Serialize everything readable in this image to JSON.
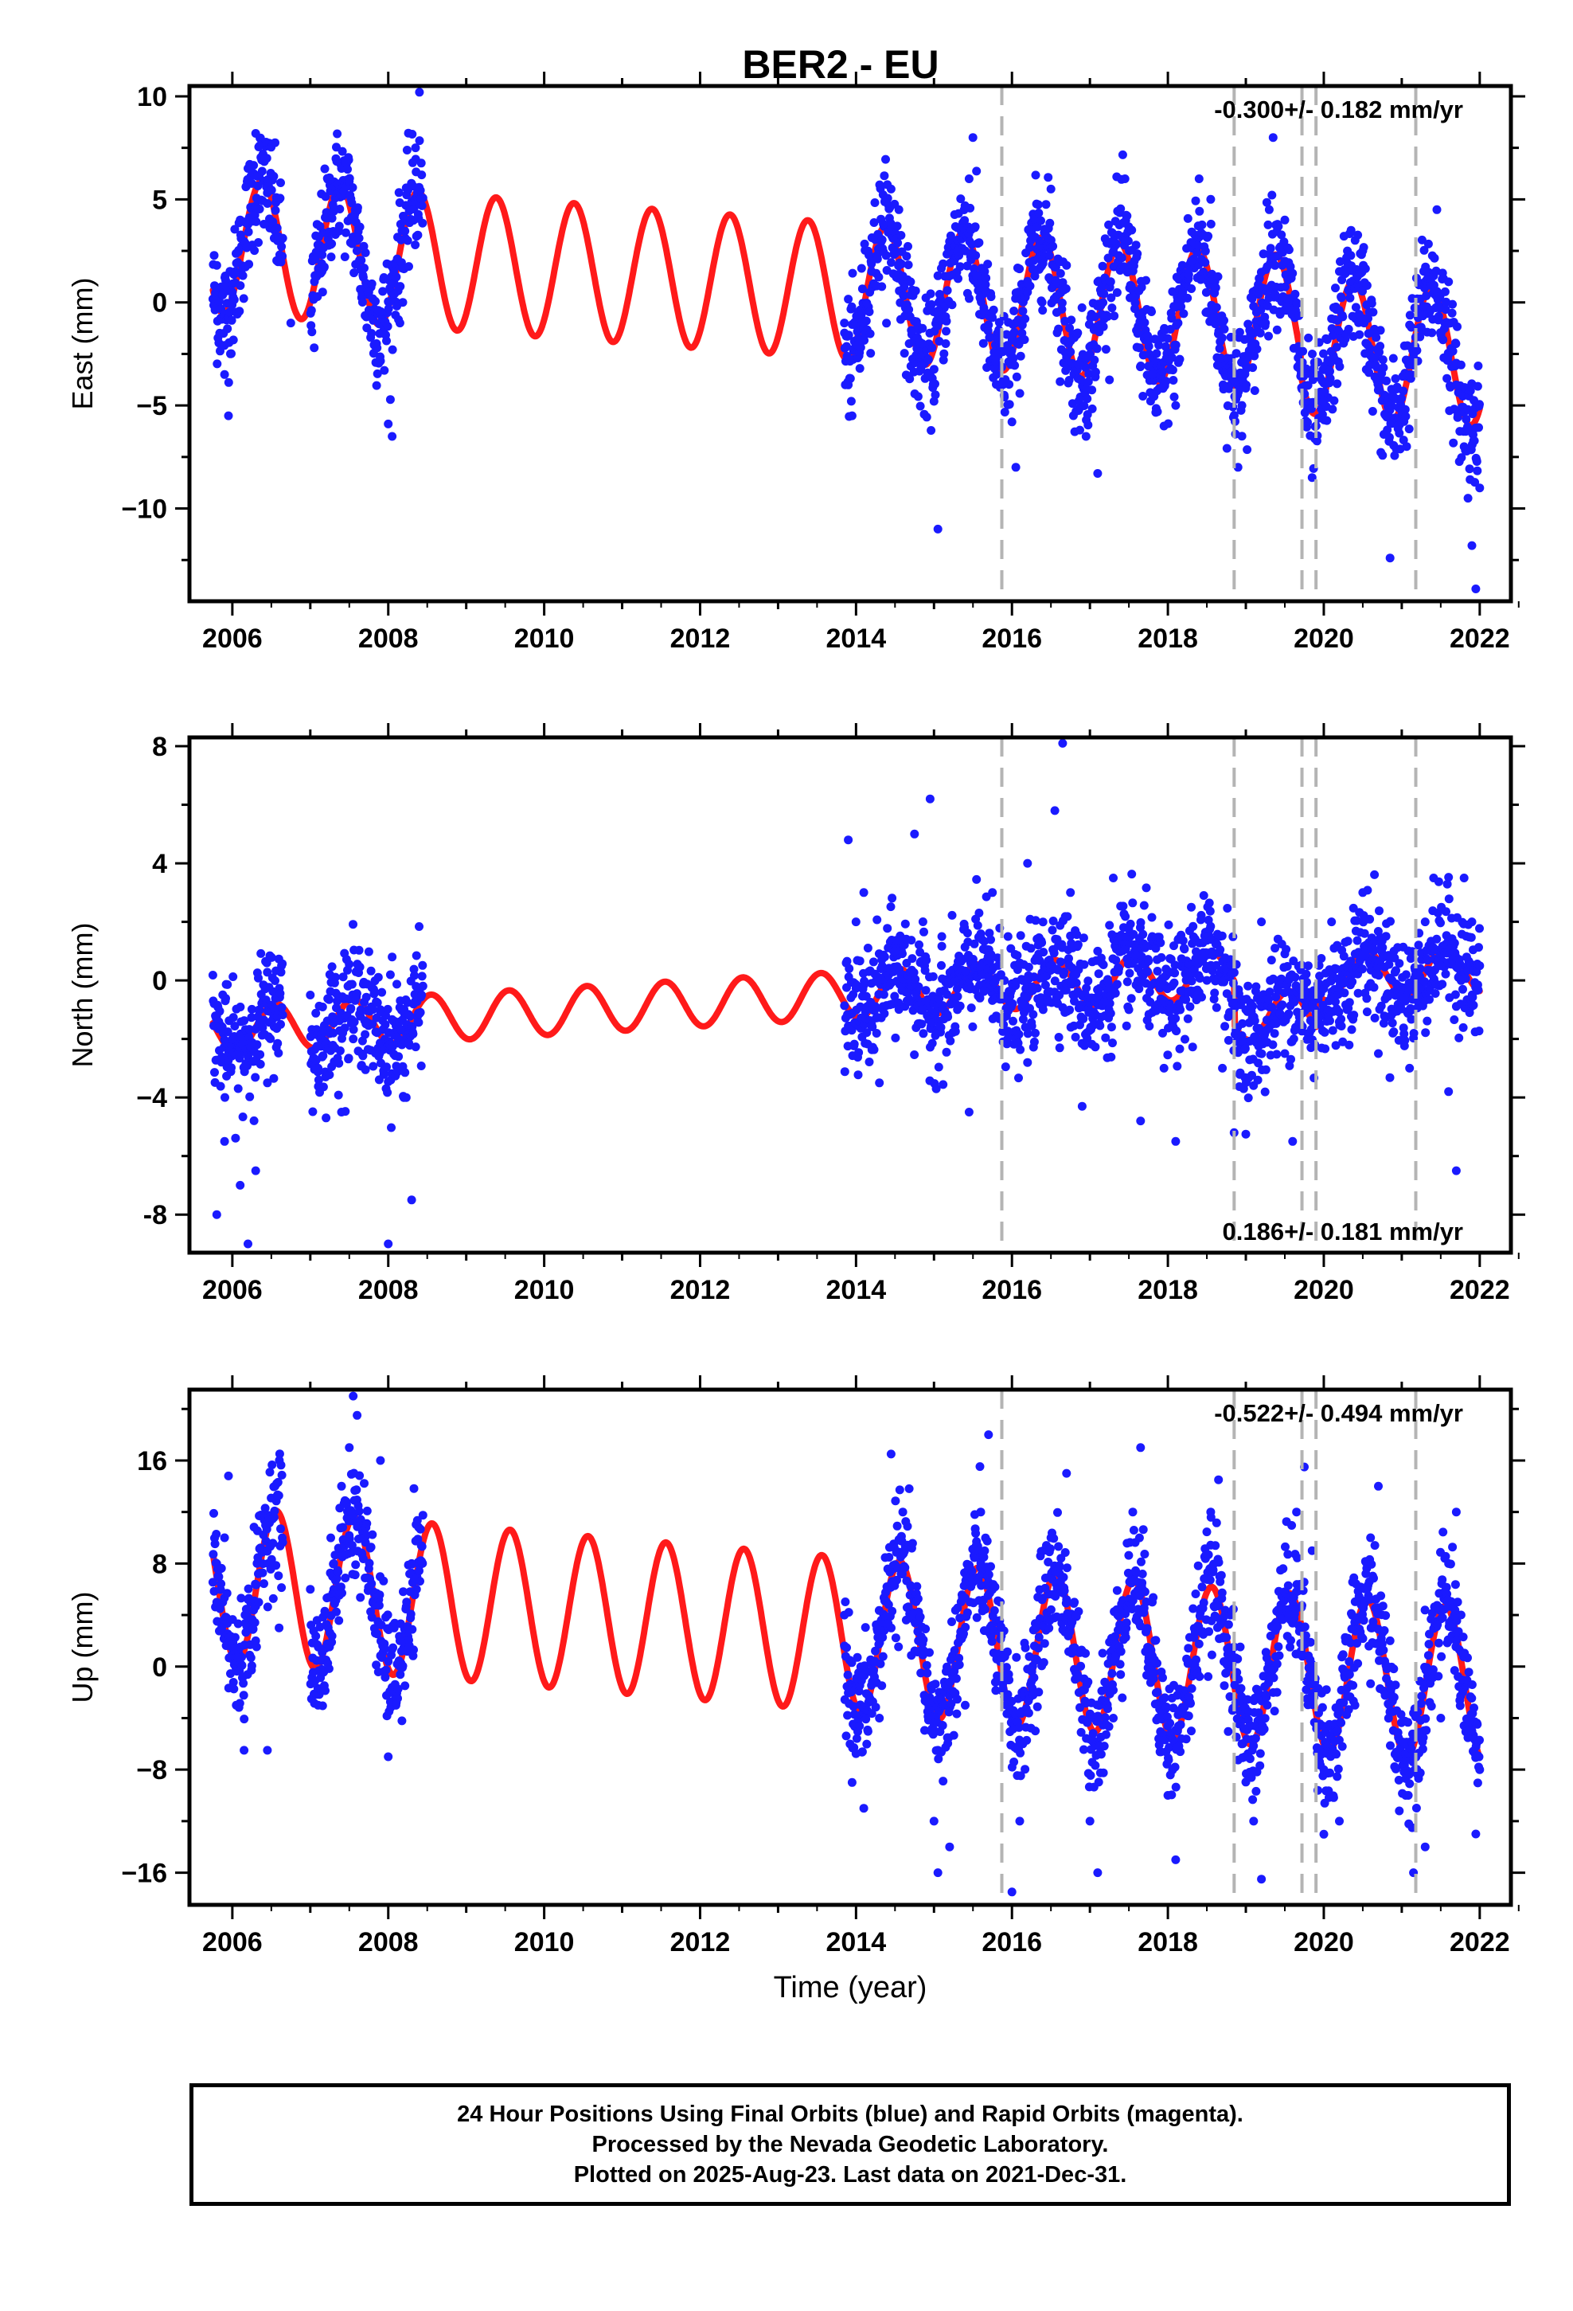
{
  "title": "BER2 - EU",
  "colors": {
    "data": "#1a1aff",
    "model": "#ff1a1a",
    "marker": "#b4b4b4"
  },
  "xlabel": "Time (year)",
  "caption": {
    "line1": "24 Hour Positions Using Final Orbits (blue) and Rapid Orbits (magenta).",
    "line2": "Processed by the Nevada Geodetic Laboratory.",
    "line3": "Plotted on 2025-Aug-23. Last data on 2021-Dec-31."
  },
  "chart_data": [
    {
      "type": "scatter",
      "component": "east",
      "ylabel": "East (mm)",
      "rate_label": "-0.300+/- 0.182 mm/yr",
      "rate_position": "top-right",
      "xlim": [
        2005.45,
        2022.4
      ],
      "ylim": [
        -14.5,
        10.5
      ],
      "xticks": [
        2006,
        2008,
        2010,
        2012,
        2014,
        2016,
        2018,
        2020,
        2022
      ],
      "yticks": [
        -10,
        -5,
        0,
        5,
        10
      ],
      "ytick_labels": [
        "−10",
        "−5",
        "0",
        "5",
        "10"
      ],
      "grid": false,
      "model": {
        "trend_at_start": 2.8,
        "trend_at_end": -1.7,
        "annual_amplitude": 3.3,
        "peak_day": 140,
        "offsets": [
          {
            "x": 2019.7,
            "dy": -1.0
          }
        ]
      },
      "data_points": [
        [
          2005.8,
          1.8
        ],
        [
          2005.9,
          -3.5
        ],
        [
          2005.95,
          -5.5
        ],
        [
          2006.0,
          0.5
        ],
        [
          2006.1,
          4.0
        ],
        [
          2006.2,
          6.5
        ],
        [
          2006.3,
          8.2
        ],
        [
          2006.35,
          7.6
        ],
        [
          2006.45,
          4.8
        ],
        [
          2006.6,
          2.0
        ],
        [
          2006.75,
          -1.0
        ],
        [
          2007.05,
          -2.2
        ],
        [
          2007.15,
          1.5
        ],
        [
          2007.3,
          4.5
        ],
        [
          2007.45,
          6.8
        ],
        [
          2007.6,
          3.0
        ],
        [
          2007.75,
          0.5
        ],
        [
          2007.85,
          -2.0
        ],
        [
          2007.95,
          -3.3
        ],
        [
          2008.0,
          -5.9
        ],
        [
          2008.05,
          -6.5
        ],
        [
          2008.15,
          -1.0
        ],
        [
          2008.25,
          3.0
        ],
        [
          2008.35,
          7.5
        ],
        [
          2008.4,
          10.2
        ],
        [
          2013.85,
          -1.0
        ],
        [
          2013.9,
          -4.0
        ],
        [
          2013.95,
          -5.5
        ],
        [
          2014.05,
          -3.2
        ],
        [
          2014.2,
          1.5
        ],
        [
          2014.35,
          3.8
        ],
        [
          2014.45,
          5.5
        ],
        [
          2014.55,
          4.5
        ],
        [
          2014.7,
          1.0
        ],
        [
          2014.85,
          -2.0
        ],
        [
          2015.0,
          -4.8
        ],
        [
          2015.05,
          -11.0
        ],
        [
          2015.15,
          -2.0
        ],
        [
          2015.3,
          2.5
        ],
        [
          2015.45,
          6.0
        ],
        [
          2015.5,
          8.0
        ],
        [
          2015.65,
          1.5
        ],
        [
          2015.8,
          -2.5
        ],
        [
          2015.9,
          -4.5
        ],
        [
          2016.0,
          -5.8
        ],
        [
          2016.05,
          -8.0
        ],
        [
          2016.2,
          0.5
        ],
        [
          2016.35,
          3.0
        ],
        [
          2016.5,
          5.5
        ],
        [
          2016.7,
          1.8
        ],
        [
          2016.85,
          -3.0
        ],
        [
          2016.95,
          -6.5
        ],
        [
          2017.1,
          -8.3
        ],
        [
          2017.3,
          3.0
        ],
        [
          2017.45,
          6.0
        ],
        [
          2017.6,
          2.2
        ],
        [
          2017.8,
          -3.5
        ],
        [
          2017.95,
          -6.0
        ],
        [
          2018.1,
          -5.0
        ],
        [
          2018.3,
          2.0
        ],
        [
          2018.4,
          6.0
        ],
        [
          2018.55,
          5.0
        ],
        [
          2018.7,
          -1.0
        ],
        [
          2018.85,
          -3.5
        ],
        [
          2018.9,
          -8.0
        ],
        [
          2018.95,
          -5.0
        ],
        [
          2019.1,
          -2.0
        ],
        [
          2019.3,
          4.5
        ],
        [
          2019.35,
          8.0
        ],
        [
          2019.5,
          2.0
        ],
        [
          2019.7,
          -3.0
        ],
        [
          2019.85,
          -8.5
        ],
        [
          2019.9,
          -6.5
        ],
        [
          2020.0,
          -4.8
        ],
        [
          2020.2,
          1.5
        ],
        [
          2020.35,
          3.5
        ],
        [
          2020.5,
          2.5
        ],
        [
          2020.65,
          -1.5
        ],
        [
          2020.8,
          -5.5
        ],
        [
          2020.85,
          -12.4
        ],
        [
          2020.95,
          -6.0
        ],
        [
          2021.1,
          -3.5
        ],
        [
          2021.3,
          1.5
        ],
        [
          2021.45,
          4.5
        ],
        [
          2021.6,
          1.0
        ],
        [
          2021.7,
          -4.0
        ],
        [
          2021.8,
          -7.0
        ],
        [
          2021.85,
          -9.5
        ],
        [
          2021.9,
          -11.8
        ],
        [
          2021.95,
          -13.9
        ],
        [
          2022.0,
          -9.0
        ]
      ]
    },
    {
      "type": "scatter",
      "component": "north",
      "ylabel": "North (mm)",
      "rate_label": "0.186+/- 0.181 mm/yr",
      "rate_position": "bottom-right",
      "xlim": [
        2005.45,
        2022.4
      ],
      "ylim": [
        -9.3,
        8.3
      ],
      "xticks": [
        2006,
        2008,
        2010,
        2012,
        2014,
        2016,
        2018,
        2020,
        2022
      ],
      "yticks": [
        -8,
        -4,
        0,
        4,
        8
      ],
      "ytick_labels": [
        "-8",
        "−4",
        "0",
        "4",
        "8"
      ],
      "grid": false,
      "model": {
        "trend_at_start": -1.7,
        "trend_at_end": 0.7,
        "annual_amplitude": 0.8,
        "peak_day": 200,
        "offsets": [
          {
            "x": 2018.85,
            "dy": -1.5
          },
          {
            "x": 2019.9,
            "dy": 1.2
          }
        ]
      },
      "data_points": [
        [
          2005.8,
          -8.0
        ],
        [
          2005.9,
          -5.5
        ],
        [
          2006.0,
          -2.0
        ],
        [
          2006.1,
          -7.0
        ],
        [
          2006.2,
          -9.0
        ],
        [
          2006.3,
          -6.5
        ],
        [
          2006.45,
          -3.5
        ],
        [
          2007.0,
          -0.5
        ],
        [
          2007.1,
          -3.0
        ],
        [
          2007.25,
          0.2
        ],
        [
          2007.4,
          -4.5
        ],
        [
          2007.55,
          -2.0
        ],
        [
          2007.9,
          -1.0
        ],
        [
          2008.0,
          -9.0
        ],
        [
          2008.05,
          0.8
        ],
        [
          2008.2,
          -4.0
        ],
        [
          2008.3,
          -7.5
        ],
        [
          2013.9,
          4.8
        ],
        [
          2014.0,
          2.0
        ],
        [
          2014.1,
          3.0
        ],
        [
          2014.2,
          -1.5
        ],
        [
          2014.3,
          -3.5
        ],
        [
          2014.5,
          1.0
        ],
        [
          2014.75,
          5.0
        ],
        [
          2014.95,
          6.2
        ],
        [
          2015.1,
          1.5
        ],
        [
          2015.3,
          -1.0
        ],
        [
          2015.45,
          -4.5
        ],
        [
          2015.6,
          0.5
        ],
        [
          2015.75,
          3.0
        ],
        [
          2015.95,
          1.5
        ],
        [
          2016.2,
          4.0
        ],
        [
          2016.4,
          -1.0
        ],
        [
          2016.55,
          5.8
        ],
        [
          2016.65,
          8.1
        ],
        [
          2016.75,
          3.0
        ],
        [
          2016.9,
          -4.3
        ],
        [
          2017.1,
          1.0
        ],
        [
          2017.3,
          3.5
        ],
        [
          2017.5,
          -1.0
        ],
        [
          2017.65,
          -4.8
        ],
        [
          2017.8,
          1.5
        ],
        [
          2017.95,
          -3.0
        ],
        [
          2018.1,
          -5.5
        ],
        [
          2018.3,
          2.5
        ],
        [
          2018.5,
          0.0
        ],
        [
          2018.7,
          -3.0
        ],
        [
          2018.85,
          -5.2
        ],
        [
          2019.0,
          -1.0
        ],
        [
          2019.2,
          2.0
        ],
        [
          2019.5,
          -2.5
        ],
        [
          2019.6,
          -5.5
        ],
        [
          2019.8,
          0.5
        ],
        [
          2019.95,
          -1.5
        ],
        [
          2020.1,
          2.0
        ],
        [
          2020.3,
          -1.0
        ],
        [
          2020.5,
          3.0
        ],
        [
          2020.7,
          -2.5
        ],
        [
          2020.9,
          1.0
        ],
        [
          2021.1,
          -3.0
        ],
        [
          2021.3,
          2.0
        ],
        [
          2021.5,
          0.5
        ],
        [
          2021.6,
          -3.8
        ],
        [
          2021.7,
          -6.5
        ],
        [
          2021.8,
          3.5
        ],
        [
          2021.9,
          2.0
        ],
        [
          2022.0,
          0.5
        ]
      ]
    },
    {
      "type": "scatter",
      "component": "up",
      "ylabel": "Up (mm)",
      "rate_label": "-0.522+/- 0.494 mm/yr",
      "rate_position": "top-right",
      "xlim": [
        2005.45,
        2022.4
      ],
      "ylim": [
        -18.5,
        21.5
      ],
      "xticks": [
        2006,
        2008,
        2010,
        2012,
        2014,
        2016,
        2018,
        2020,
        2022
      ],
      "yticks": [
        -16,
        -8,
        0,
        8,
        16
      ],
      "ytick_labels": [
        "−16",
        "−8",
        "0",
        "8",
        "16"
      ],
      "grid": false,
      "model": {
        "trend_at_start": 6.5,
        "trend_at_end": -1.5,
        "annual_amplitude": 6.0,
        "peak_day": 205,
        "offsets": []
      },
      "data_points": [
        [
          2005.8,
          5.0
        ],
        [
          2005.9,
          10.0
        ],
        [
          2005.95,
          14.8
        ],
        [
          2006.05,
          -3.0
        ],
        [
          2006.15,
          -6.5
        ],
        [
          2006.3,
          2.0
        ],
        [
          2006.45,
          -6.5
        ],
        [
          2006.6,
          3.0
        ],
        [
          2007.0,
          6.0
        ],
        [
          2007.1,
          -3.0
        ],
        [
          2007.3,
          8.0
        ],
        [
          2007.4,
          14.0
        ],
        [
          2007.5,
          17.0
        ],
        [
          2007.55,
          21.0
        ],
        [
          2007.6,
          19.5
        ],
        [
          2007.7,
          10.0
        ],
        [
          2007.9,
          16.0
        ],
        [
          2008.0,
          -7.0
        ],
        [
          2008.15,
          2.0
        ],
        [
          2008.3,
          8.0
        ],
        [
          2013.85,
          4.0
        ],
        [
          2013.95,
          -9.0
        ],
        [
          2014.1,
          -11.0
        ],
        [
          2014.3,
          -4.0
        ],
        [
          2014.45,
          16.5
        ],
        [
          2014.6,
          12.0
        ],
        [
          2014.8,
          2.0
        ],
        [
          2015.0,
          -12.0
        ],
        [
          2015.05,
          -16.0
        ],
        [
          2015.2,
          -14.0
        ],
        [
          2015.4,
          -3.0
        ],
        [
          2015.6,
          12.0
        ],
        [
          2015.7,
          18.0
        ],
        [
          2015.85,
          5.0
        ],
        [
          2016.0,
          -17.5
        ],
        [
          2016.1,
          -12.0
        ],
        [
          2016.3,
          -5.0
        ],
        [
          2016.5,
          10.0
        ],
        [
          2016.7,
          15.0
        ],
        [
          2016.8,
          5.0
        ],
        [
          2017.0,
          -12.0
        ],
        [
          2017.1,
          -16.0
        ],
        [
          2017.3,
          -4.0
        ],
        [
          2017.55,
          12.0
        ],
        [
          2017.65,
          17.0
        ],
        [
          2017.8,
          5.0
        ],
        [
          2018.0,
          -10.0
        ],
        [
          2018.1,
          -15.0
        ],
        [
          2018.3,
          -5.0
        ],
        [
          2018.55,
          12.0
        ],
        [
          2018.65,
          14.5
        ],
        [
          2018.8,
          4.0
        ],
        [
          2018.95,
          -6.0
        ],
        [
          2019.1,
          -12.0
        ],
        [
          2019.2,
          -16.5
        ],
        [
          2019.4,
          -2.0
        ],
        [
          2019.65,
          12.0
        ],
        [
          2019.75,
          15.5
        ],
        [
          2019.85,
          9.0
        ],
        [
          2020.0,
          -8.0
        ],
        [
          2020.2,
          -12.0
        ],
        [
          2020.4,
          -3.0
        ],
        [
          2020.6,
          10.0
        ],
        [
          2020.7,
          14.0
        ],
        [
          2020.85,
          2.0
        ],
        [
          2021.05,
          -10.0
        ],
        [
          2021.15,
          -16.0
        ],
        [
          2021.3,
          -14.0
        ],
        [
          2021.5,
          -4.0
        ],
        [
          2021.6,
          8.0
        ],
        [
          2021.7,
          12.0
        ],
        [
          2021.8,
          1.0
        ],
        [
          2021.9,
          -5.0
        ],
        [
          2021.95,
          -13.0
        ],
        [
          2022.0,
          -8.0
        ]
      ]
    }
  ],
  "equipment_changes": [
    2015.87,
    2018.85,
    2019.72,
    2019.9,
    2021.18
  ],
  "data_coverage": [
    [
      2005.75,
      2006.65
    ],
    [
      2007.0,
      2007.9
    ],
    [
      2007.9,
      2008.45
    ],
    [
      2013.85,
      2022.0
    ]
  ]
}
